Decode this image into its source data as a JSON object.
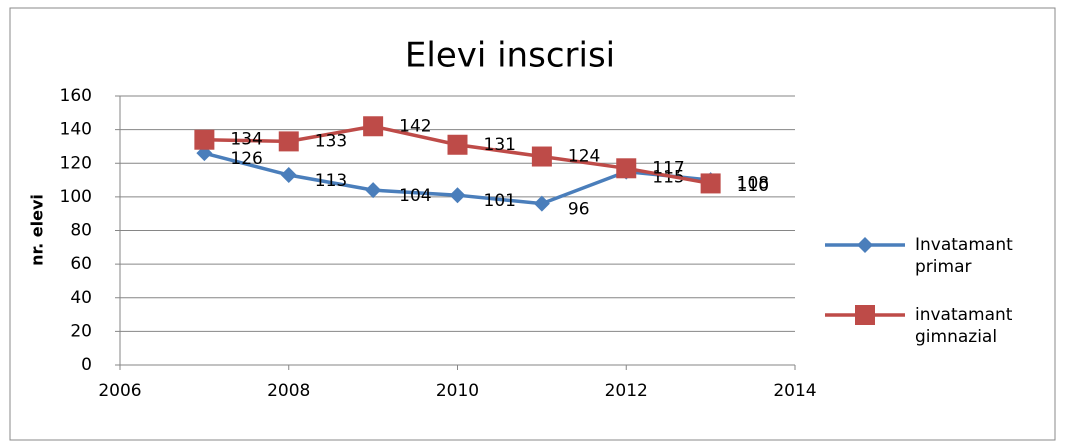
{
  "chart_data": {
    "type": "line",
    "title": "Elevi inscrisi",
    "ylabel": "nr. elevi",
    "x": [
      2007,
      2008,
      2009,
      2010,
      2011,
      2012,
      2013
    ],
    "series": [
      {
        "name": "Invatamant primar",
        "color": "#4a7ebb",
        "marker": "diamond",
        "values": [
          126,
          113,
          104,
          101,
          96,
          115,
          110
        ]
      },
      {
        "name": "invatamant gimnazial",
        "color": "#be4b48",
        "marker": "square",
        "values": [
          134,
          133,
          142,
          131,
          124,
          117,
          108
        ]
      }
    ],
    "xlim": [
      2006,
      2014
    ],
    "xticks": [
      2006,
      2008,
      2010,
      2012,
      2014
    ],
    "ylim": [
      0,
      160
    ],
    "yticks": [
      0,
      20,
      40,
      60,
      80,
      100,
      120,
      140,
      160
    ],
    "grid": true,
    "legend": "right"
  }
}
